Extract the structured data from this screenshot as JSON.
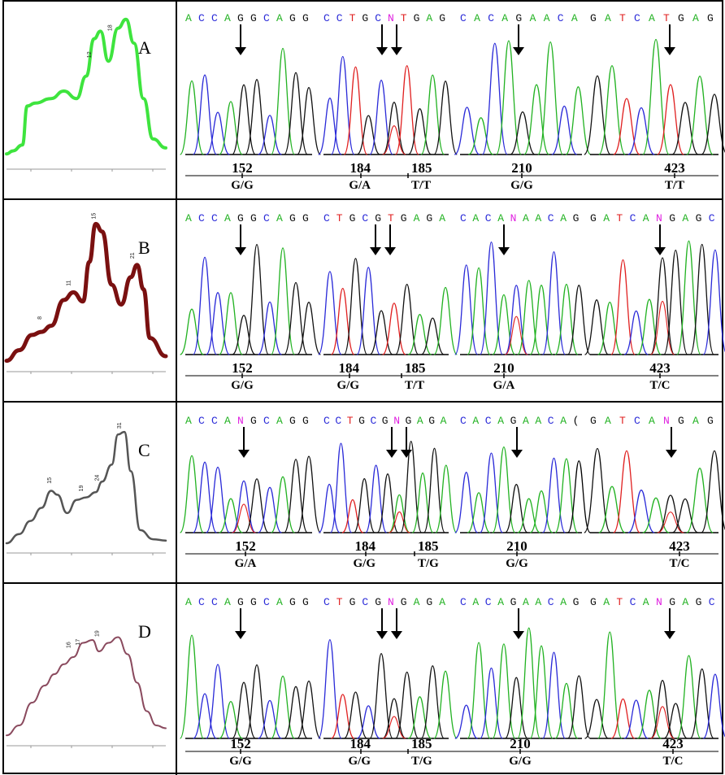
{
  "colors": {
    "A": "#3ee43e",
    "B": "#7a1010",
    "C": "#555555",
    "D": "#8a4a5e",
    "trace_green": "#22b222",
    "trace_blue": "#2a2ad8",
    "trace_black": "#111111",
    "trace_red": "#e02020",
    "base_A": "#22b222",
    "base_C": "#2a2ad8",
    "base_G": "#111111",
    "base_T": "#e02020",
    "base_N": "#e020e0"
  },
  "panels": [
    {
      "letter": "A",
      "peak_labels": [
        "12",
        "18"
      ],
      "seqs": [
        "ACCAGGCAGG",
        "CCTGCNTGAG",
        "CACAGAACA",
        "GATCATGAG"
      ],
      "positions": [
        {
          "pos": "152",
          "genotype": "G/G"
        },
        {
          "pos": "184",
          "genotype": "G/A"
        },
        {
          "pos": "185",
          "genotype": "T/T"
        },
        {
          "pos": "210",
          "genotype": "G/G"
        },
        {
          "pos": "423",
          "genotype": "T/T"
        }
      ]
    },
    {
      "letter": "B",
      "peak_labels": [
        "8",
        "11",
        "15",
        "21"
      ],
      "seqs": [
        "ACCAGGCAGG",
        "CTGCGTGAGA",
        "CACANAACAG",
        "GATCANGAGC"
      ],
      "positions": [
        {
          "pos": "152",
          "genotype": "G/G"
        },
        {
          "pos": "184",
          "genotype": "G/G"
        },
        {
          "pos": "185",
          "genotype": "T/T"
        },
        {
          "pos": "210",
          "genotype": "G/A"
        },
        {
          "pos": "423",
          "genotype": "T/C"
        }
      ]
    },
    {
      "letter": "C",
      "peak_labels": [
        "15",
        "19",
        "24",
        "31"
      ],
      "seqs": [
        "ACCANGCAGG",
        "CCTGCGNGAGA",
        "CACAGAACA(",
        "GATCANGAG"
      ],
      "positions": [
        {
          "pos": "152",
          "genotype": "G/A"
        },
        {
          "pos": "184",
          "genotype": "G/G"
        },
        {
          "pos": "185",
          "genotype": "T/G"
        },
        {
          "pos": "210",
          "genotype": "G/G"
        },
        {
          "pos": "423",
          "genotype": "T/C"
        }
      ]
    },
    {
      "letter": "D",
      "peak_labels": [
        "16",
        "17",
        "19"
      ],
      "seqs": [
        "ACCAGGCAGG",
        "CTGCGNGAGA",
        "CACAGAACAG",
        "GATCANGAGC"
      ],
      "positions": [
        {
          "pos": "152",
          "genotype": "G/G"
        },
        {
          "pos": "184",
          "genotype": "G/G"
        },
        {
          "pos": "185",
          "genotype": "T/G"
        },
        {
          "pos": "210",
          "genotype": "G/G"
        },
        {
          "pos": "423",
          "genotype": "T/C"
        }
      ]
    }
  ]
}
